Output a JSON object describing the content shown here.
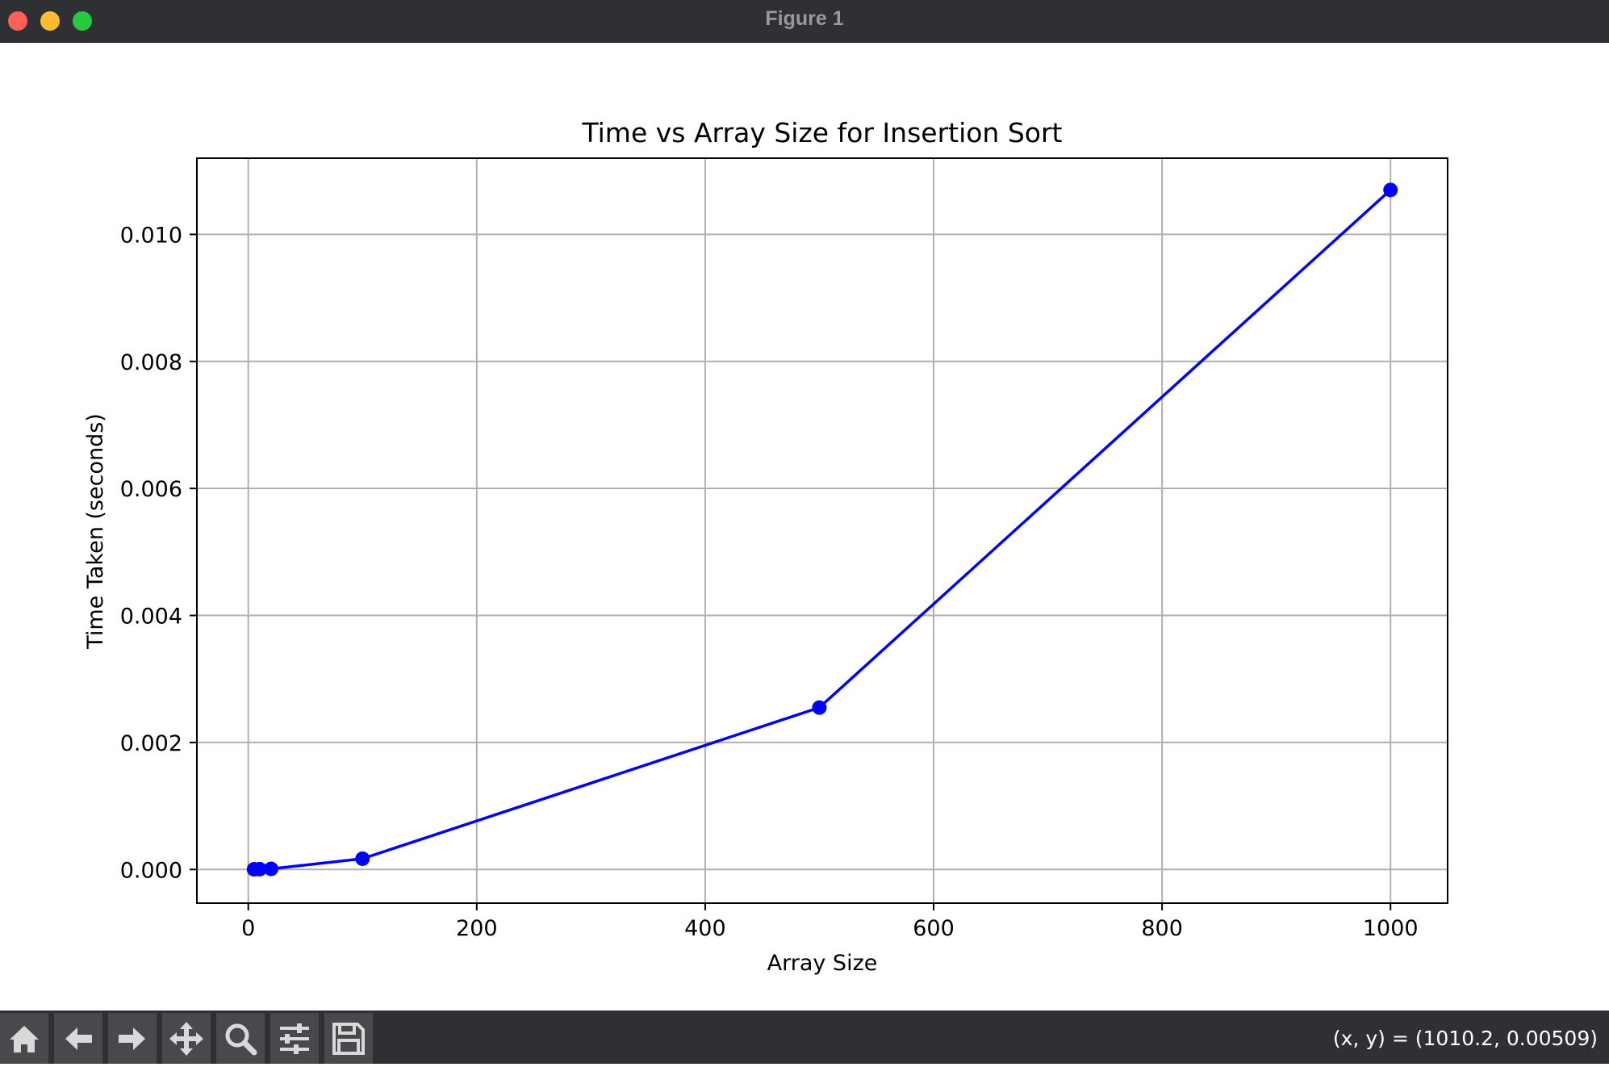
{
  "window": {
    "title": "Figure 1"
  },
  "toolbar": {
    "buttons": [
      {
        "name": "home-icon"
      },
      {
        "name": "back-arrow-icon"
      },
      {
        "name": "forward-arrow-icon"
      },
      {
        "name": "pan-move-icon"
      },
      {
        "name": "zoom-magnifier-icon"
      },
      {
        "name": "configure-subplots-icon"
      },
      {
        "name": "save-floppy-icon"
      }
    ],
    "coordinates": "(x, y) = (1010.2, 0.00509)"
  },
  "chart_data": {
    "type": "line",
    "title": "Time vs Array Size for Insertion Sort",
    "xlabel": "Array Size",
    "ylabel": "Time Taken (seconds)",
    "x": [
      5,
      10,
      20,
      100,
      500,
      1000
    ],
    "series": [
      {
        "values": [
          3e-06,
          5e-06,
          1e-05,
          0.00017,
          0.00255,
          0.0107
        ],
        "color": "#0000ff",
        "marker": "circle"
      }
    ],
    "xlim": [
      -45,
      1050
    ],
    "ylim": [
      -0.00053,
      0.0112
    ],
    "xticks": [
      0,
      200,
      400,
      600,
      800,
      1000
    ],
    "xtick_labels": [
      "0",
      "200",
      "400",
      "600",
      "800",
      "1000"
    ],
    "yticks": [
      0.0,
      0.002,
      0.004,
      0.006,
      0.008,
      0.01
    ],
    "ytick_labels": [
      "0.000",
      "0.002",
      "0.004",
      "0.006",
      "0.008",
      "0.010"
    ],
    "grid": true
  }
}
